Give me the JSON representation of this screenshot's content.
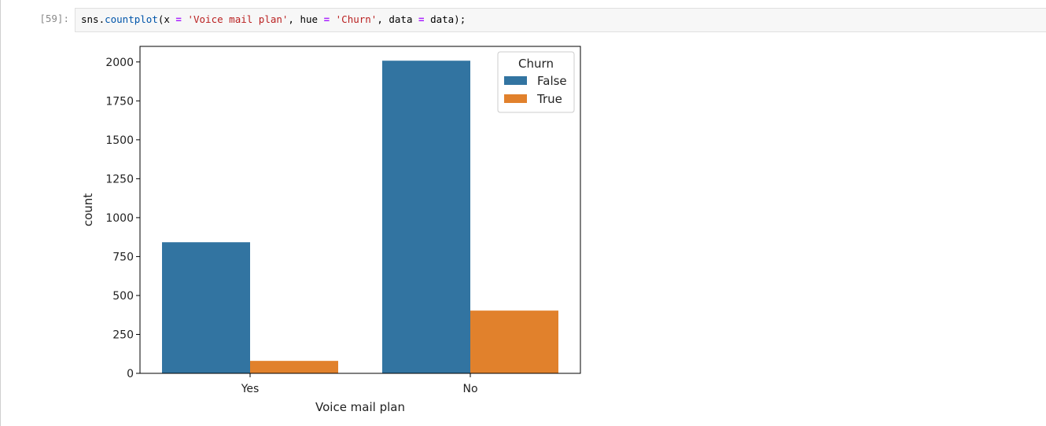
{
  "cell": {
    "prompt": "[59]:",
    "code_tokens": [
      {
        "text": "sns.",
        "cls": ""
      },
      {
        "text": "countplot",
        "cls": "tok-func"
      },
      {
        "text": "(x ",
        "cls": ""
      },
      {
        "text": "=",
        "cls": "tok-op"
      },
      {
        "text": " ",
        "cls": ""
      },
      {
        "text": "'Voice mail plan'",
        "cls": "tok-str"
      },
      {
        "text": ", hue ",
        "cls": ""
      },
      {
        "text": "=",
        "cls": "tok-op"
      },
      {
        "text": " ",
        "cls": ""
      },
      {
        "text": "'Churn'",
        "cls": "tok-str"
      },
      {
        "text": ", data ",
        "cls": ""
      },
      {
        "text": "=",
        "cls": "tok-op"
      },
      {
        "text": " data);",
        "cls": ""
      }
    ]
  },
  "chart_data": {
    "type": "bar",
    "title": "",
    "xlabel": "Voice mail plan",
    "ylabel": "count",
    "categories": [
      "Yes",
      "No"
    ],
    "ylim": [
      0,
      2100
    ],
    "yticks": [
      0,
      250,
      500,
      750,
      1000,
      1250,
      1500,
      1750,
      2000
    ],
    "grid": false,
    "legend": {
      "title": "Churn",
      "placement": "top-right"
    },
    "series": [
      {
        "name": "False",
        "color": "#3274a1",
        "values": [
          842,
          2008
        ]
      },
      {
        "name": "True",
        "color": "#e1812c",
        "values": [
          80,
          403
        ]
      }
    ]
  }
}
